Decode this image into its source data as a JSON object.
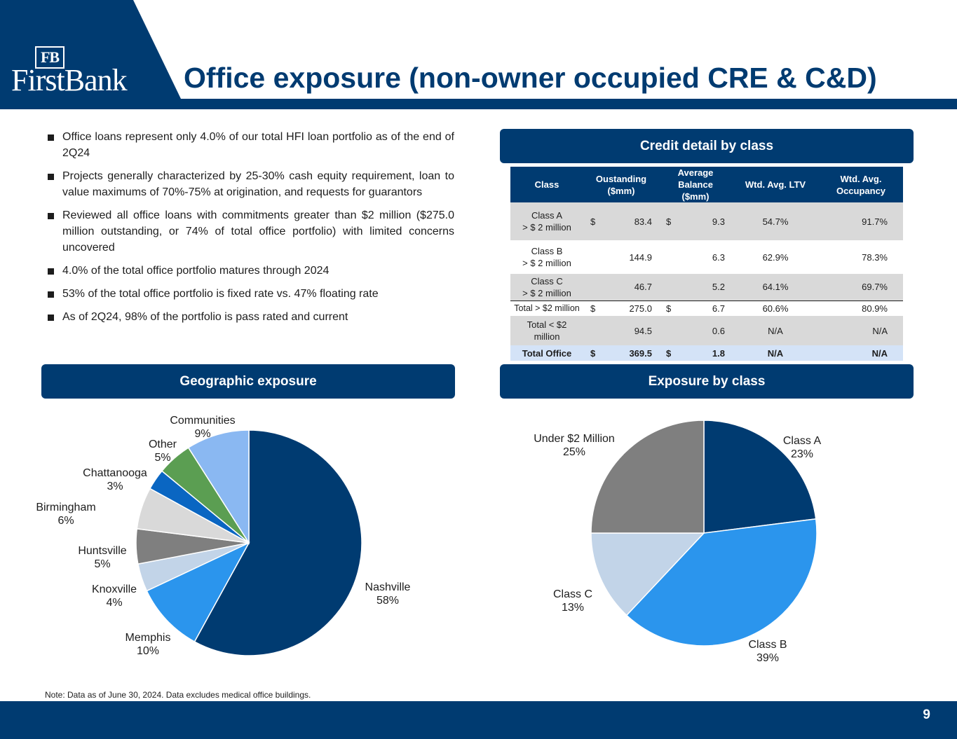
{
  "header": {
    "logo_mark": "FB",
    "logo_text": "FirstBank",
    "title": "Office exposure (non-owner occupied CRE & C&D)"
  },
  "bullets": [
    "Office loans represent only 4.0% of our total HFI loan portfolio as of the end of 2Q24",
    "Projects generally characterized by 25-30% cash equity requirement, loan to value maximums of 70%-75% at origination, and requests for guarantors",
    "Reviewed all office loans with commitments greater than $2 million ($275.0 million outstanding, or 74% of total office portfolio) with limited concerns uncovered",
    "4.0% of the total office portfolio matures through 2024",
    "53% of the total office portfolio is fixed rate vs. 47% floating rate",
    "As of 2Q24, 98% of the portfolio is pass rated and current"
  ],
  "credit_table": {
    "section_title": "Credit detail by class",
    "headers": {
      "class": "Class",
      "outstanding_1": "Oustanding",
      "outstanding_2": "($mm)",
      "avg_balance_1": "Average Balance",
      "avg_balance_2": "($mm)",
      "ltv": "Wtd. Avg. LTV",
      "occupancy_1": "Wtd. Avg.",
      "occupancy_2": "Occupancy"
    },
    "rows": [
      {
        "class_1": "Class A",
        "class_2": "> $ 2 million",
        "cur1": "$",
        "outstanding": "83.4",
        "cur2": "$",
        "avg_balance": "9.3",
        "ltv": "54.7%",
        "occupancy": "91.7%"
      },
      {
        "class_1": "Class B",
        "class_2": "> $ 2 million",
        "cur1": "",
        "outstanding": "144.9",
        "cur2": "",
        "avg_balance": "6.3",
        "ltv": "62.9%",
        "occupancy": "78.3%"
      },
      {
        "class_1": "Class C",
        "class_2": "> $ 2 million",
        "cur1": "",
        "outstanding": "46.7",
        "cur2": "",
        "avg_balance": "5.2",
        "ltv": "64.1%",
        "occupancy": "69.7%"
      },
      {
        "class_1": "Total > $2 million",
        "class_2": "",
        "cur1": "$",
        "outstanding": "275.0",
        "cur2": "$",
        "avg_balance": "6.7",
        "ltv": "60.6%",
        "occupancy": "80.9%"
      },
      {
        "class_1": "Total < $2",
        "class_2": "million",
        "cur1": "",
        "outstanding": "94.5",
        "cur2": "",
        "avg_balance": "0.6",
        "ltv": "N/A",
        "occupancy": "N/A"
      },
      {
        "class_1": "Total Office",
        "class_2": "",
        "cur1": "$",
        "outstanding": "369.5",
        "cur2": "$",
        "avg_balance": "1.8",
        "ltv": "N/A",
        "occupancy": "N/A"
      }
    ]
  },
  "sections": {
    "geo": "Geographic exposure",
    "byclass": "Exposure by class"
  },
  "chart_data": [
    {
      "type": "pie",
      "title": "Geographic exposure",
      "categories": [
        "Nashville",
        "Memphis",
        "Knoxville",
        "Huntsville",
        "Birmingham",
        "Chattanooga",
        "Other",
        "Communities"
      ],
      "values": [
        58,
        10,
        4,
        5,
        6,
        3,
        5,
        9
      ],
      "value_labels": [
        "58%",
        "10%",
        "4%",
        "5%",
        "6%",
        "3%",
        "5%",
        "9%"
      ],
      "colors": [
        "#003b71",
        "#2b95ed",
        "#c2d4e8",
        "#7f7f7f",
        "#d9d9d9",
        "#0a66c2",
        "#5b9e52",
        "#8ab8f2"
      ],
      "start": "12 o'clock, clockwise"
    },
    {
      "type": "pie",
      "title": "Exposure by class",
      "categories": [
        "Class A",
        "Class B",
        "Class C",
        "Under $2 Million"
      ],
      "values": [
        23,
        39,
        13,
        25
      ],
      "value_labels": [
        "23%",
        "39%",
        "13%",
        "25%"
      ],
      "colors": [
        "#003b71",
        "#2b95ed",
        "#c2d4e8",
        "#7f7f7f"
      ],
      "start": "12 o'clock, clockwise"
    }
  ],
  "footer": {
    "note": "Note: Data as of June 30, 2024. Data excludes medical office buildings.",
    "page_number": "9"
  }
}
